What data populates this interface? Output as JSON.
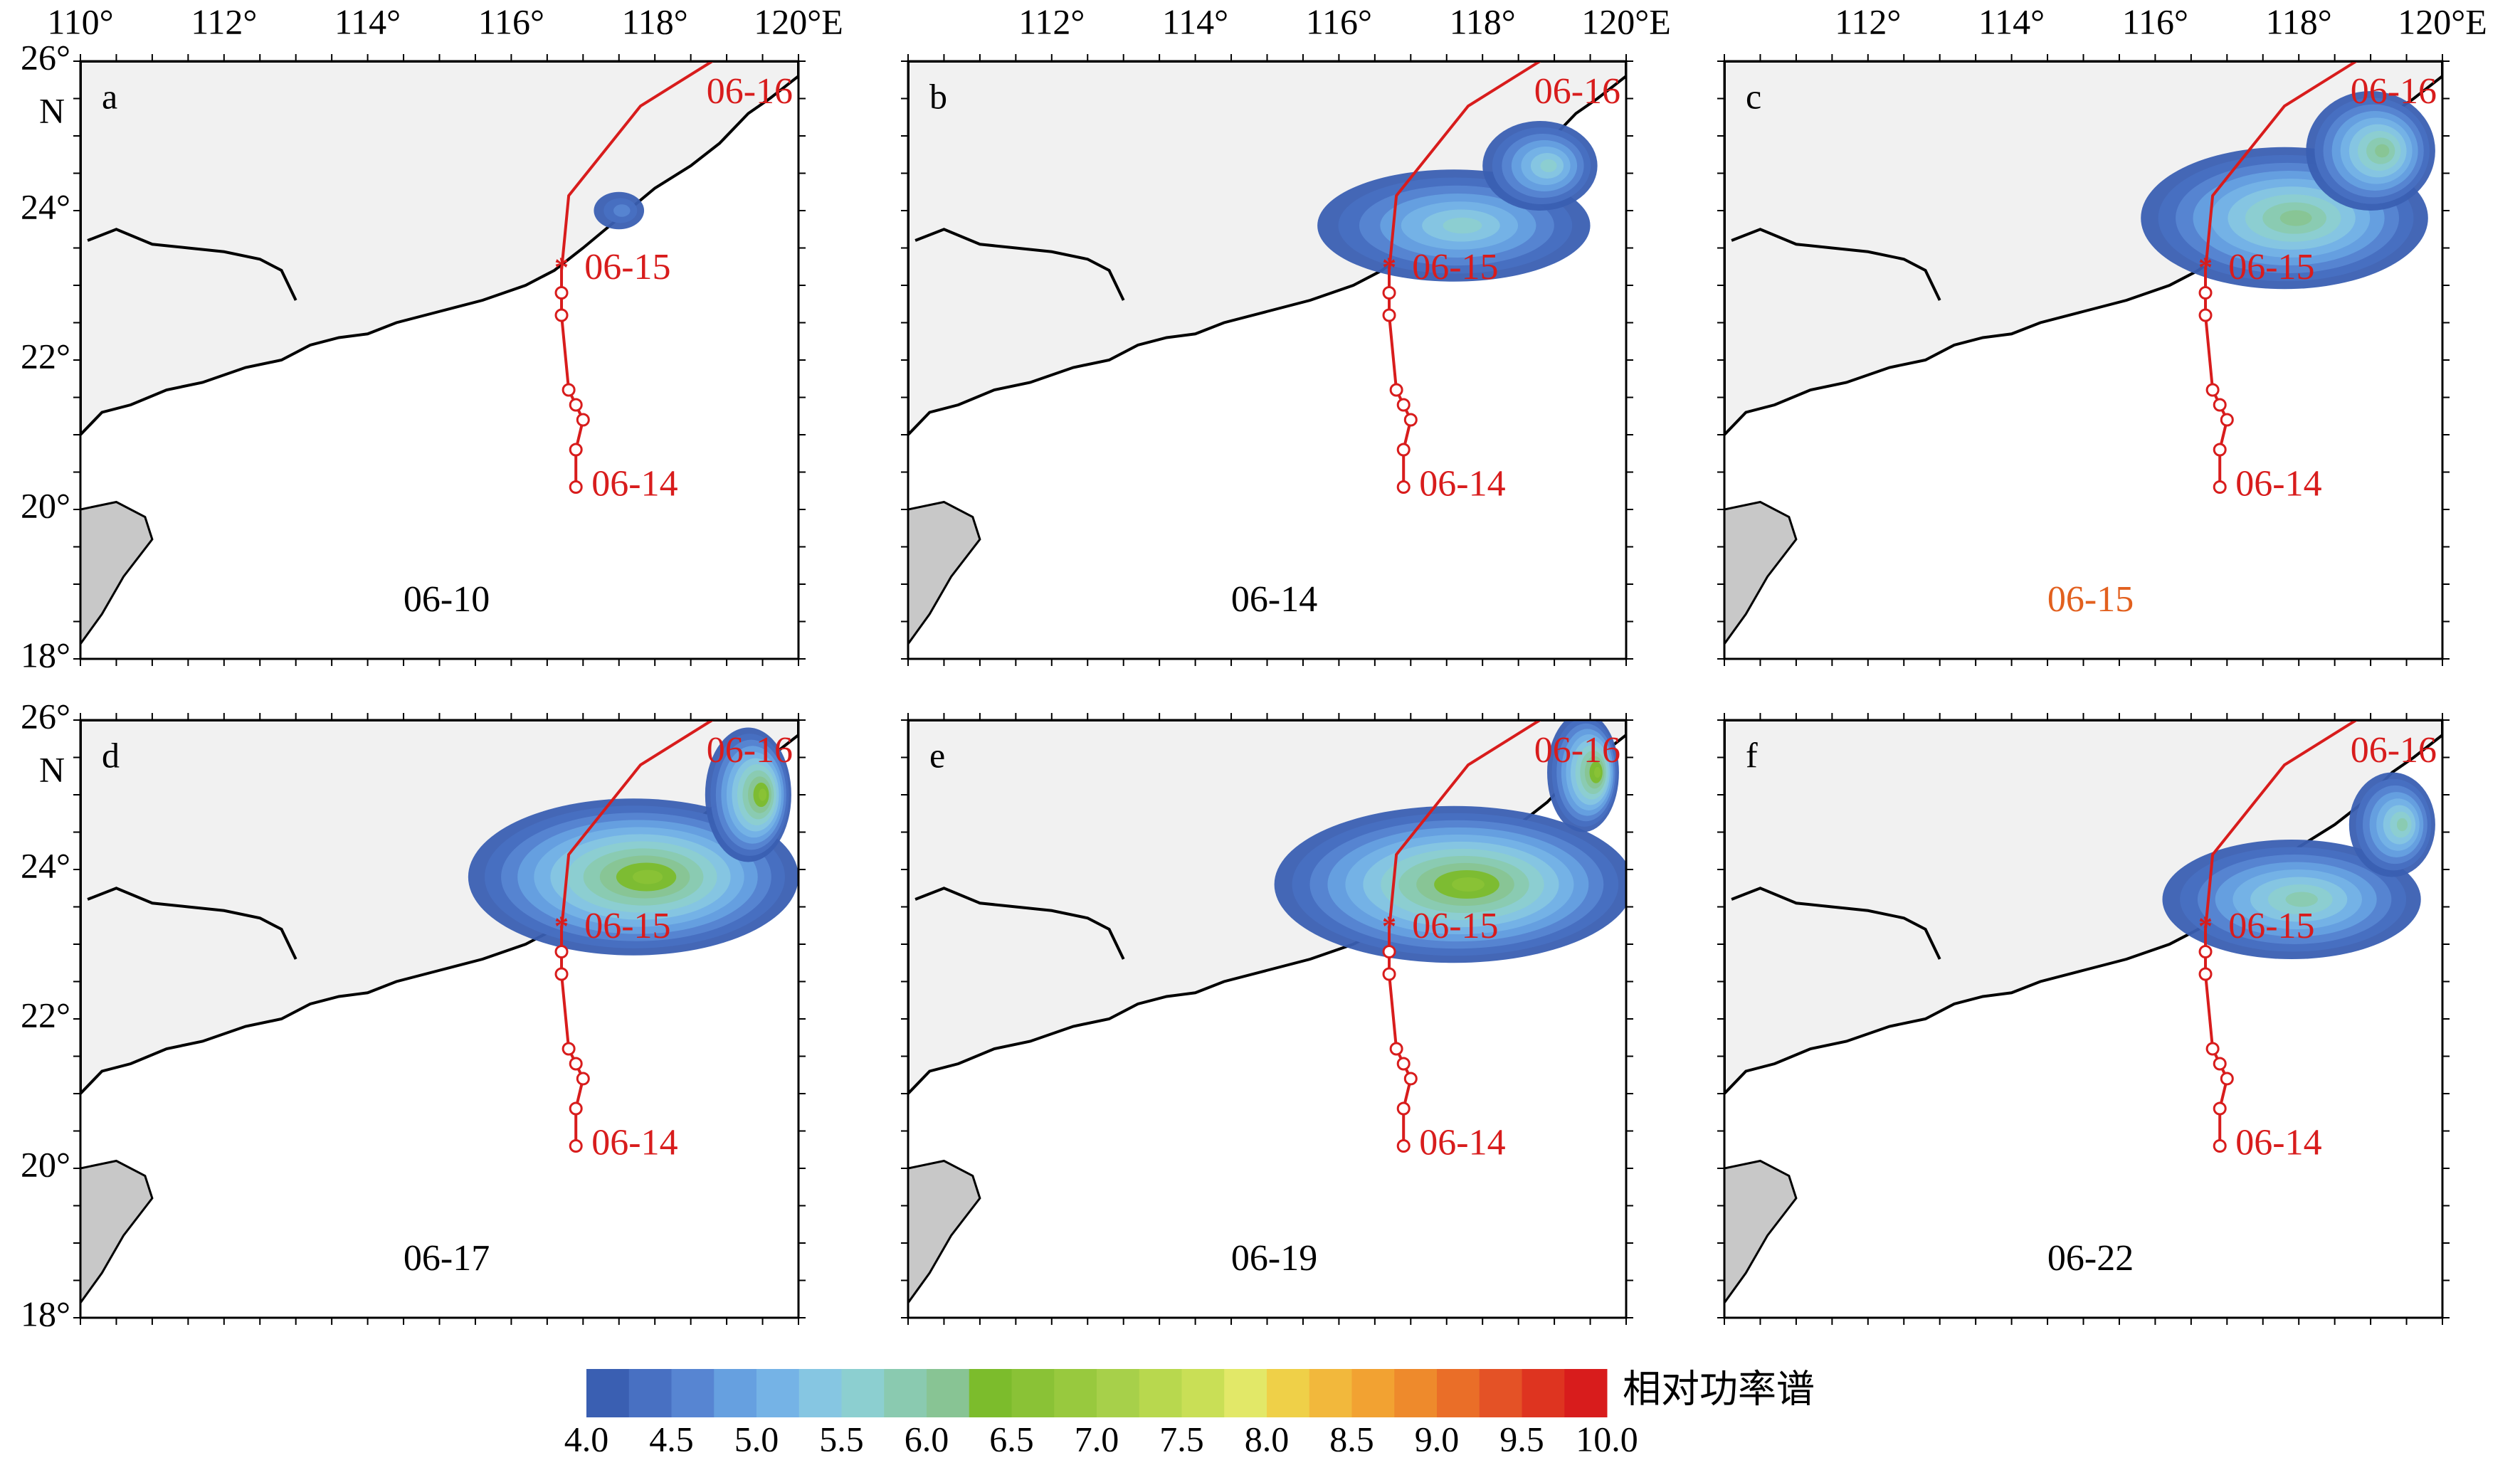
{
  "lon_ticks": [
    {
      "value": 110,
      "label": "110°"
    },
    {
      "value": 112,
      "label": "112°"
    },
    {
      "value": 114,
      "label": "114°"
    },
    {
      "value": 116,
      "label": "116°"
    },
    {
      "value": 118,
      "label": "118°"
    },
    {
      "value": 120,
      "label": "120°E"
    }
  ],
  "lat_ticks": [
    {
      "value": 26,
      "label": "26°"
    },
    {
      "value": 24,
      "label": "24°"
    },
    {
      "value": 22,
      "label": "22°"
    },
    {
      "value": 20,
      "label": "20°"
    },
    {
      "value": 18,
      "label": "18°"
    }
  ],
  "lat_unit": "N",
  "track": {
    "lon": [
      116.9,
      116.9,
      117.0,
      116.9,
      116.8,
      116.7,
      116.7,
      116.7,
      116.8,
      117.8,
      118.8
    ],
    "lat": [
      20.3,
      20.8,
      21.2,
      21.4,
      21.6,
      22.6,
      22.9,
      23.2,
      24.2,
      25.4,
      26.0
    ],
    "labels": [
      {
        "text": "06-16",
        "lon": 118.6,
        "lat": 25.55
      },
      {
        "text": "06-15",
        "lon": 116.9,
        "lat": 23.2
      },
      {
        "text": "06-14",
        "lon": 117.0,
        "lat": 20.3
      }
    ]
  },
  "panels": [
    {
      "letter": "a",
      "date": "06-10",
      "date_color": "#000000"
    },
    {
      "letter": "b",
      "date": "06-14",
      "date_color": "#000000"
    },
    {
      "letter": "c",
      "date": "06-15",
      "date_color": "#e2601e"
    },
    {
      "letter": "d",
      "date": "06-17",
      "date_color": "#000000"
    },
    {
      "letter": "e",
      "date": "06-19",
      "date_color": "#000000"
    },
    {
      "letter": "f",
      "date": "06-22",
      "date_color": "#000000"
    }
  ],
  "colorbar": {
    "title": "相对功率谱",
    "colors": [
      "#3a5fb2",
      "#4870c2",
      "#5785d2",
      "#66a0e0",
      "#75b3e6",
      "#86c6e2",
      "#8ccfd0",
      "#8acab0",
      "#88c494",
      "#7cbc2c",
      "#8ac236",
      "#98c93e",
      "#a7d04a",
      "#b8d84e",
      "#c9df56",
      "#e2e868",
      "#efd048",
      "#f2b83c",
      "#f2a232",
      "#ee8a2c",
      "#ea6e28",
      "#e45226",
      "#de3420",
      "#d81c1c"
    ],
    "ticks": [
      {
        "value": 4,
        "label": "4.0"
      },
      {
        "value": 4.5,
        "label": "4.5"
      },
      {
        "value": 5,
        "label": "5.0"
      },
      {
        "value": 5.5,
        "label": "5.5"
      },
      {
        "value": 6,
        "label": "6.0"
      },
      {
        "value": 6.5,
        "label": "6.5"
      },
      {
        "value": 7,
        "label": "7.0"
      },
      {
        "value": 7.5,
        "label": "7.5"
      },
      {
        "value": 8,
        "label": "8.0"
      },
      {
        "value": 8.5,
        "label": "8.5"
      },
      {
        "value": 9,
        "label": "9.0"
      },
      {
        "value": 9.5,
        "label": "9.5"
      },
      {
        "value": 10,
        "label": "10.0"
      }
    ]
  }
}
